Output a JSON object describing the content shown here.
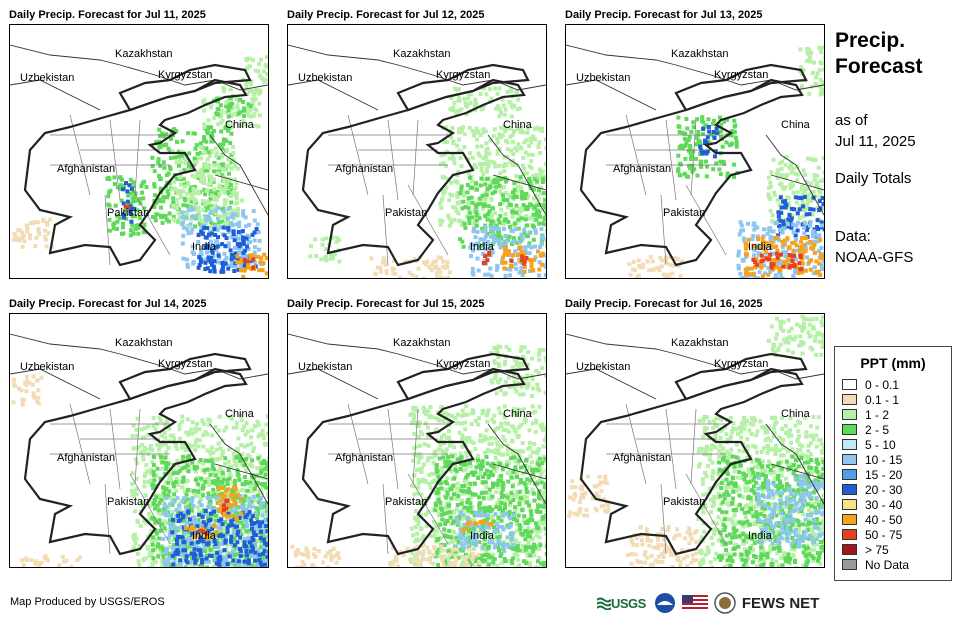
{
  "panels": [
    {
      "title": "Daily Precip. Forecast for Jul 11, 2025",
      "rain": "heavy-south-northeast"
    },
    {
      "title": "Daily Precip. Forecast for Jul 12, 2025",
      "rain": "southeast"
    },
    {
      "title": "Daily Precip. Forecast for Jul 13, 2025",
      "rain": "southeast-heavy"
    },
    {
      "title": "Daily Precip. Forecast for Jul 14, 2025",
      "rain": "south-heavy"
    },
    {
      "title": "Daily Precip. Forecast for Jul 15, 2025",
      "rain": "east"
    },
    {
      "title": "Daily Precip. Forecast for Jul 16, 2025",
      "rain": "east-light"
    }
  ],
  "map_labels": {
    "kazakhstan": "Kazakhstan",
    "uzbekistan": "Uzbekistan",
    "kyrgyzstan": "Kyrgyzstan",
    "china": "China",
    "afghanistan": "Afghanistan",
    "pakistan": "Pakistan",
    "india": "India"
  },
  "sidebar": {
    "title_line1": "Precip.",
    "title_line2": "Forecast",
    "as_of": "as of",
    "date": "Jul 11, 2025",
    "totals": "Daily Totals",
    "data_label": "Data:",
    "data_source": "NOAA-GFS"
  },
  "legend": {
    "title": "PPT (mm)",
    "items": [
      {
        "label": "0 - 0.1",
        "color": "#ffffff"
      },
      {
        "label": "0.1 - 1",
        "color": "#f2dcb5"
      },
      {
        "label": "1 - 2",
        "color": "#b6f0a6"
      },
      {
        "label": "2 - 5",
        "color": "#5fd95a"
      },
      {
        "label": "5 - 10",
        "color": "#bfe8f8"
      },
      {
        "label": "10 - 15",
        "color": "#8ec6f0"
      },
      {
        "label": "15 - 20",
        "color": "#4f9ee6"
      },
      {
        "label": "20 - 30",
        "color": "#1e5ed6"
      },
      {
        "label": "30 - 40",
        "color": "#f7e38a"
      },
      {
        "label": "40 - 50",
        "color": "#f7a21b"
      },
      {
        "label": "50 - 75",
        "color": "#e8401c"
      },
      {
        "label": "> 75",
        "color": "#a5161c"
      },
      {
        "label": "No Data",
        "color": "#999999"
      }
    ]
  },
  "footer": {
    "credit": "Map Produced by USGS/EROS",
    "usgs": "USGS",
    "fews": "FEWS NET"
  }
}
